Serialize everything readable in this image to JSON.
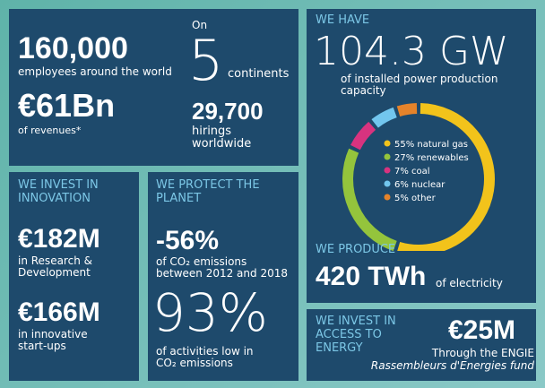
{
  "company": {
    "global": {
      "employees": "160,000",
      "employees_text": "employees around the world",
      "revenue": "€61Bn",
      "revenue_text": "of revenues*",
      "on": "On",
      "continents": "5",
      "continents_text": "continents",
      "hirings": "29,700",
      "hirings_text": "hirings worldwide"
    },
    "capacity": {
      "heading": "WE HAVE",
      "value": "104.3 GW",
      "text": "of installed power production capacity",
      "donut": {
        "type": "pie",
        "segments": [
          {
            "label": "55% natural gas",
            "value": 55,
            "color": "#f2c31b"
          },
          {
            "label": "27% renewables",
            "value": 27,
            "color": "#94c43c"
          },
          {
            "label": "7% coal",
            "value": 7,
            "color": "#d8337f"
          },
          {
            "label": "6% nuclear",
            "value": 6,
            "color": "#72c6ee"
          },
          {
            "label": "5% other",
            "value": 5,
            "color": "#e5832a"
          }
        ]
      },
      "produce_heading": "WE PRODUCE",
      "produce_value": "420 TWh",
      "produce_text": "of electricity"
    },
    "innovation": {
      "heading": "WE INVEST IN INNOVATION",
      "rd": "€182M",
      "rd_text": "in Research & Development",
      "startups": "€166M",
      "startups_text": "in innovative start-ups"
    },
    "planet": {
      "heading": "WE PROTECT THE PLANET",
      "emissions": "-56%",
      "emissions_text": "of CO₂ emissions between 2012 and 2018",
      "activities": "93%",
      "activities_text": "of activities low in CO₂ emissions"
    },
    "access": {
      "heading": "WE INVEST IN ACCESS TO ENERGY",
      "value": "€25M",
      "text": "Through the ENGIE",
      "fund": "Rassembleurs d'Energies fund"
    }
  }
}
